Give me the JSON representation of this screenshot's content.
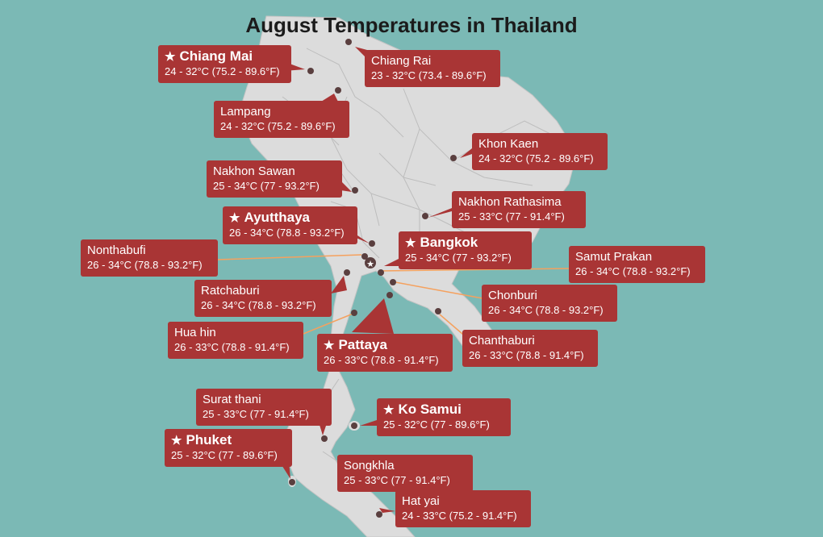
{
  "title": "August Temperatures in Thailand",
  "colors": {
    "sea": "#7bb9b5",
    "land": "#dcdcdc",
    "province_lines": "#bdbdbd",
    "label_bg": "#a93535",
    "leader_line": "#f5a15e",
    "dot": "#5a3f3f"
  },
  "cities": [
    {
      "name": "Chiang Mai",
      "temp": "24 - 32°C (75.2 - 89.6°F)",
      "featured": true
    },
    {
      "name": "Chiang Rai",
      "temp": "23 - 32°C (73.4 - 89.6°F)",
      "featured": false
    },
    {
      "name": "Lampang",
      "temp": "24 - 32°C (75.2 - 89.6°F)",
      "featured": false
    },
    {
      "name": "Khon Kaen",
      "temp": "24 - 32°C (75.2 - 89.6°F)",
      "featured": false
    },
    {
      "name": "Nakhon Sawan",
      "temp": "25 - 34°C (77 - 93.2°F)",
      "featured": false
    },
    {
      "name": "Nakhon Rathasima",
      "temp": "25 - 33°C (77 - 91.4°F)",
      "featured": false
    },
    {
      "name": "Ayutthaya",
      "temp": "26 - 34°C (78.8 - 93.2°F)",
      "featured": true
    },
    {
      "name": "Bangkok",
      "temp": "25 - 34°C (77 - 93.2°F)",
      "featured": true
    },
    {
      "name": "Nonthabufi",
      "temp": "26 - 34°C (78.8 - 93.2°F)",
      "featured": false
    },
    {
      "name": "Samut Prakan",
      "temp": "26 - 34°C (78.8 - 93.2°F)",
      "featured": false
    },
    {
      "name": "Ratchaburi",
      "temp": "26 - 34°C (78.8 - 93.2°F)",
      "featured": false
    },
    {
      "name": "Chonburi",
      "temp": "26 - 34°C (78.8 - 93.2°F)",
      "featured": false
    },
    {
      "name": "Hua hin",
      "temp": "26 - 33°C (78.8 - 91.4°F)",
      "featured": false
    },
    {
      "name": "Pattaya",
      "temp": "26 - 33°C (78.8 - 91.4°F)",
      "featured": true
    },
    {
      "name": "Chanthaburi",
      "temp": "26 - 33°C (78.8 - 91.4°F)",
      "featured": false
    },
    {
      "name": "Surat thani",
      "temp": "25 - 33°C (77 - 91.4°F)",
      "featured": false
    },
    {
      "name": "Ko Samui",
      "temp": "25 - 32°C (77 - 89.6°F)",
      "featured": true
    },
    {
      "name": "Phuket",
      "temp": "25 - 32°C (77 - 89.6°F)",
      "featured": true
    },
    {
      "name": "Songkhla",
      "temp": "25 - 33°C (77 - 91.4°F)",
      "featured": false
    },
    {
      "name": "Hat yai",
      "temp": "24 - 33°C (75.2 - 91.4°F)",
      "featured": false
    }
  ]
}
